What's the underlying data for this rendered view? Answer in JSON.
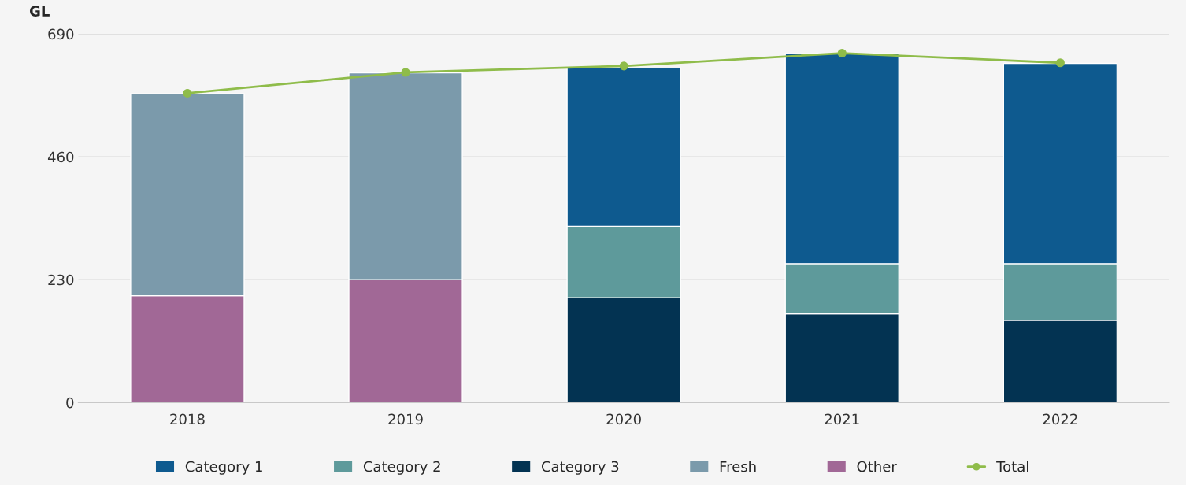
{
  "chart_data": {
    "type": "bar",
    "stacked": true,
    "ylabel": "GL",
    "categories": [
      "2018",
      "2019",
      "2020",
      "2021",
      "2022"
    ],
    "series": [
      {
        "name": "Other",
        "color": "#a16896",
        "values": [
          200,
          230,
          null,
          null,
          null
        ]
      },
      {
        "name": "Fresh",
        "color": "#7b9aab",
        "values": [
          378,
          387,
          null,
          null,
          null
        ]
      },
      {
        "name": "Category 3",
        "color": "#033352",
        "values": [
          null,
          null,
          196,
          166,
          154
        ]
      },
      {
        "name": "Category 2",
        "color": "#5e9a9b",
        "values": [
          null,
          null,
          134,
          94,
          106
        ]
      },
      {
        "name": "Category 1",
        "color": "#0e5a8f",
        "values": [
          null,
          null,
          297,
          393,
          375
        ]
      },
      {
        "name": "Total",
        "type": "line",
        "color": "#8fbc4a",
        "marker": "circle",
        "values": [
          579,
          618,
          630,
          654,
          636
        ]
      }
    ],
    "ylim": [
      0,
      690
    ],
    "yticks": [
      0,
      230,
      460,
      690
    ],
    "grid": "y",
    "legend": "bottom"
  }
}
